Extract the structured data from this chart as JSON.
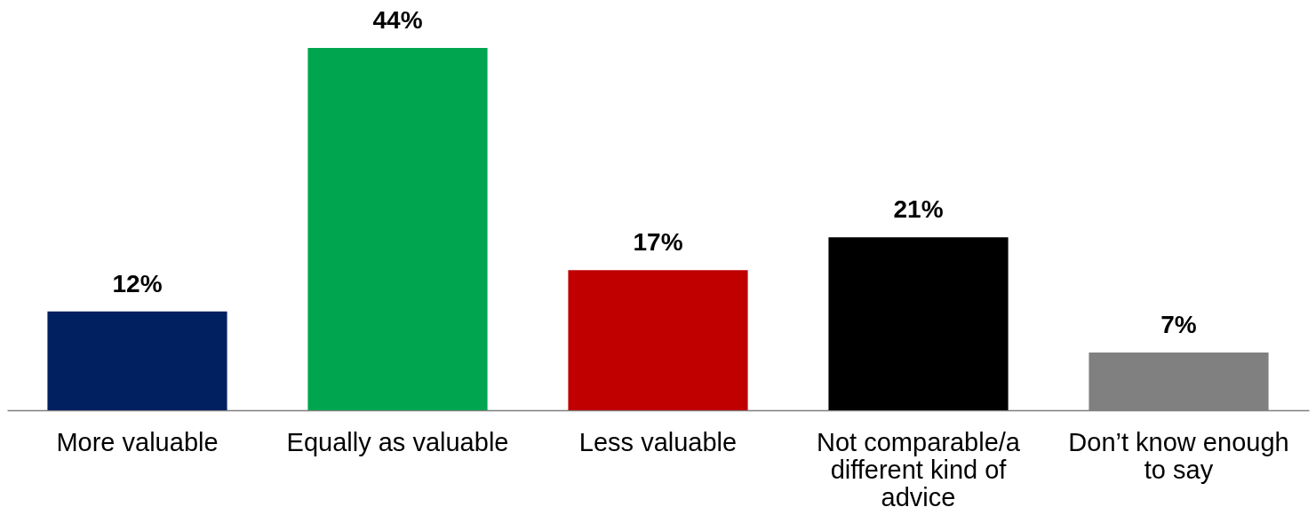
{
  "chart_data": {
    "type": "bar",
    "categories": [
      "More valuable",
      "Equally as valuable",
      "Less valuable",
      "Not comparable/a different kind of advice",
      "Don’t know enough to say"
    ],
    "values": [
      12,
      44,
      17,
      21,
      7
    ],
    "value_labels": [
      "12%",
      "44%",
      "17%",
      "21%",
      "7%"
    ],
    "colors": [
      "#002060",
      "#00a550",
      "#c00000",
      "#000000",
      "#808080"
    ]
  }
}
